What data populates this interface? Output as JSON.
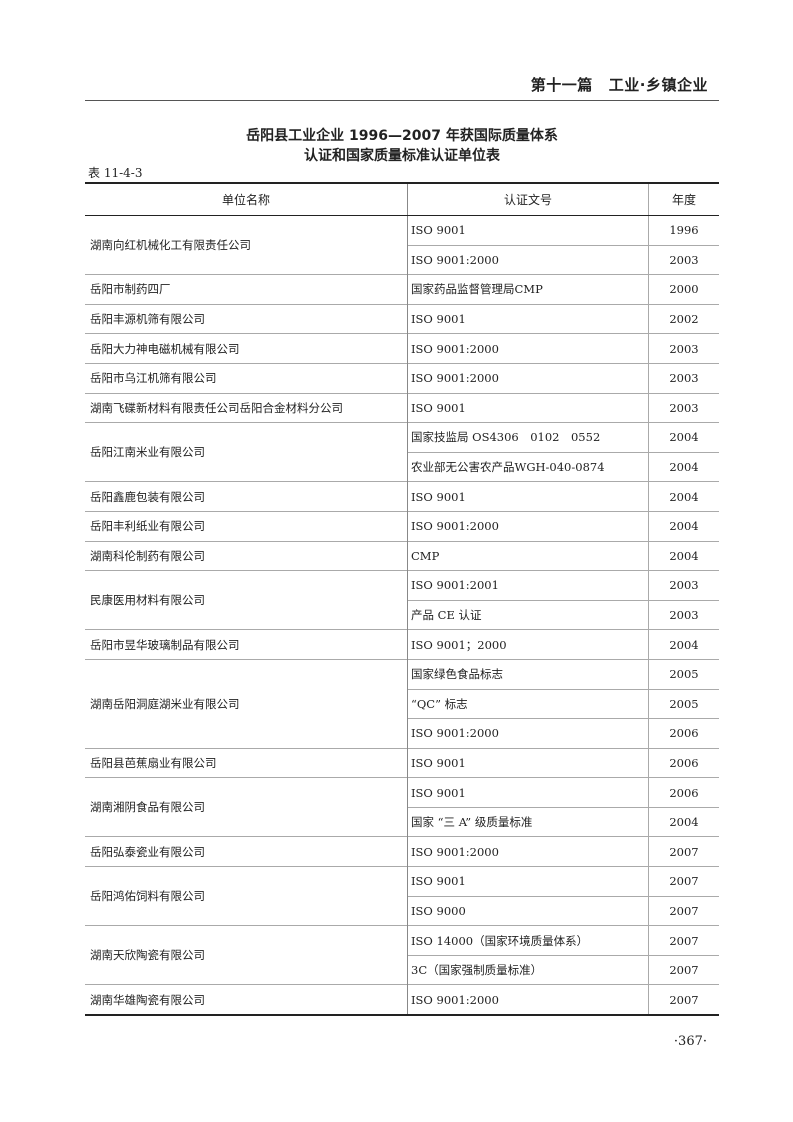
{
  "running_header": {
    "part": "第十一篇",
    "section": "工业·乡镇企业"
  },
  "title_line1": "岳阳县工业企业 1996—2007 年获国际质量体系",
  "title_line2": "认证和国家质量标准认证单位表",
  "table_number": "表 11-4-3",
  "table": {
    "headers": [
      "单位名称",
      "认证文号",
      "年度"
    ],
    "groups": [
      {
        "name": "湖南向红机械化工有限责任公司",
        "certs": [
          {
            "doc": "ISO 9001",
            "year": "1996"
          },
          {
            "doc": "ISO 9001:2000",
            "year": "2003"
          }
        ]
      },
      {
        "name": "岳阳市制药四厂",
        "certs": [
          {
            "doc": "国家药品监督管理局CMP",
            "year": "2000"
          }
        ]
      },
      {
        "name": "岳阳丰源机筛有限公司",
        "certs": [
          {
            "doc": "ISO 9001",
            "year": "2002"
          }
        ]
      },
      {
        "name": "岳阳大力神电磁机械有限公司",
        "certs": [
          {
            "doc": "ISO 9001:2000",
            "year": "2003"
          }
        ]
      },
      {
        "name": "岳阳市乌江机筛有限公司",
        "certs": [
          {
            "doc": "ISO 9001:2000",
            "year": "2003"
          }
        ]
      },
      {
        "name": "湖南飞碟新材料有限责任公司岳阳合金材料分公司",
        "certs": [
          {
            "doc": "ISO 9001",
            "year": "2003"
          }
        ]
      },
      {
        "name": "岳阳江南米业有限公司",
        "certs": [
          {
            "doc": "国家技监局 OS4306　0102　0552",
            "year": "2004"
          },
          {
            "doc": "农业部无公害农产品WGH-040-0874",
            "year": "2004"
          }
        ]
      },
      {
        "name": "岳阳鑫鹿包装有限公司",
        "certs": [
          {
            "doc": "ISO 9001",
            "year": "2004"
          }
        ]
      },
      {
        "name": "岳阳丰利纸业有限公司",
        "certs": [
          {
            "doc": "ISO 9001:2000",
            "year": "2004"
          }
        ]
      },
      {
        "name": "湖南科伦制药有限公司",
        "certs": [
          {
            "doc": "CMP",
            "year": "2004"
          }
        ]
      },
      {
        "name": "民康医用材料有限公司",
        "certs": [
          {
            "doc": "ISO 9001:2001",
            "year": "2003"
          },
          {
            "doc": "产品 CE 认证",
            "year": "2003"
          }
        ]
      },
      {
        "name": "岳阳市昱华玻璃制品有限公司",
        "certs": [
          {
            "doc": "ISO 9001；2000",
            "year": "2004"
          }
        ]
      },
      {
        "name": "湖南岳阳洞庭湖米业有限公司",
        "certs": [
          {
            "doc": "国家绿色食品标志",
            "year": "2005"
          },
          {
            "doc": "“QC” 标志",
            "year": "2005"
          },
          {
            "doc": "ISO 9001:2000",
            "year": "2006"
          }
        ]
      },
      {
        "name": "岳阳县芭蕉扇业有限公司",
        "certs": [
          {
            "doc": "ISO 9001",
            "year": "2006"
          }
        ]
      },
      {
        "name": "湖南湘阴食品有限公司",
        "certs": [
          {
            "doc": "ISO 9001",
            "year": "2006"
          },
          {
            "doc": "国家 “三 A” 级质量标准",
            "year": "2004"
          }
        ]
      },
      {
        "name": "岳阳弘泰瓷业有限公司",
        "certs": [
          {
            "doc": "ISO 9001:2000",
            "year": "2007"
          }
        ]
      },
      {
        "name": "岳阳鸿佑饲料有限公司",
        "certs": [
          {
            "doc": "ISO 9001",
            "year": "2007"
          },
          {
            "doc": "ISO 9000",
            "year": "2007"
          }
        ]
      },
      {
        "name": "湖南天欣陶瓷有限公司",
        "certs": [
          {
            "doc": "ISO 14000（国家环境质量体系）",
            "year": "2007"
          },
          {
            "doc": "3C（国家强制质量标准）",
            "year": "2007"
          }
        ]
      },
      {
        "name": "湖南华雄陶瓷有限公司",
        "certs": [
          {
            "doc": "ISO 9001:2000",
            "year": "2007"
          }
        ]
      }
    ]
  },
  "page_number": "·367·"
}
